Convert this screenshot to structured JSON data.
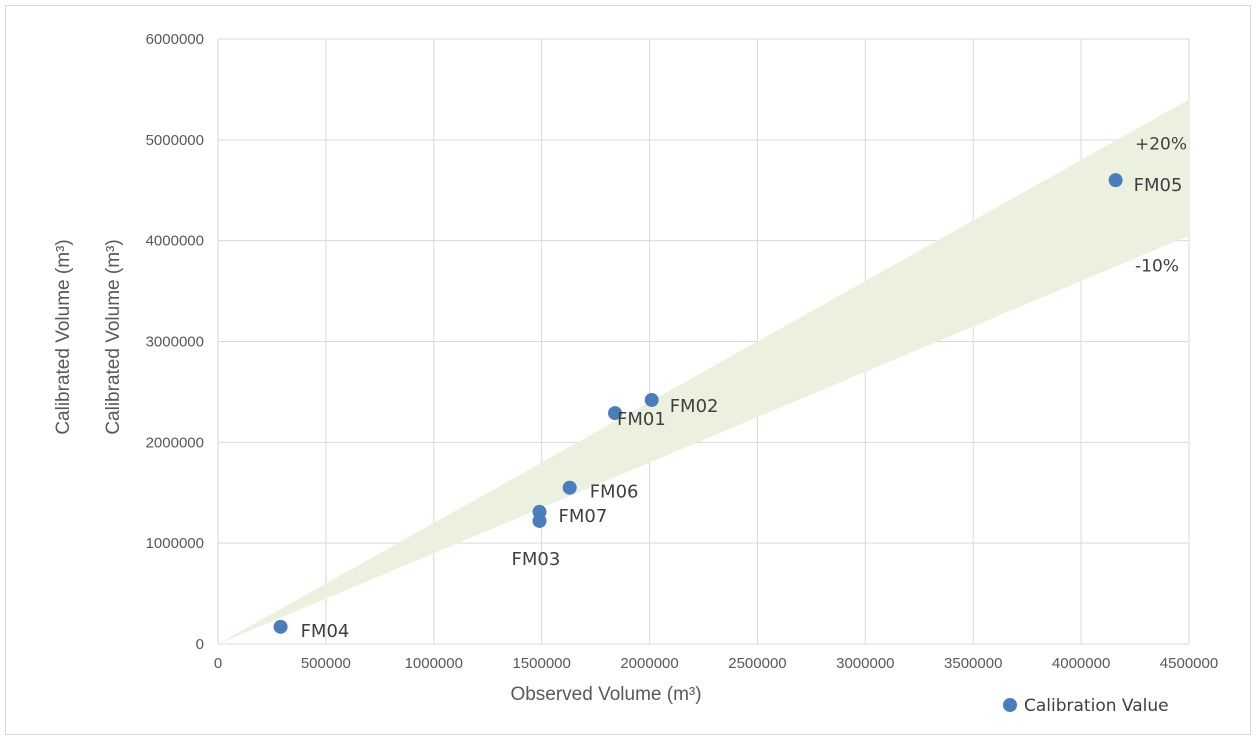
{
  "chart_data": {
    "type": "scatter",
    "xlabel": "Observed Volume (m³)",
    "ylabel": "Calibrated Volume (m³)",
    "ylabel_outer": "Calibrated Volume (m³)",
    "xlim": [
      0,
      4500000
    ],
    "ylim": [
      0,
      6000000
    ],
    "x_ticks": [
      "0",
      "500000",
      "1000000",
      "1500000",
      "2000000",
      "2500000",
      "3000000",
      "3500000",
      "4000000",
      "4500000"
    ],
    "y_ticks": [
      "0",
      "1000000",
      "2000000",
      "3000000",
      "4000000",
      "5000000",
      "6000000"
    ],
    "grid": true,
    "legend_position": "bottom-right",
    "series": [
      {
        "name": "Calibration Value",
        "color": "#4a7ebb",
        "points": [
          {
            "label": "FM01",
            "x": 1840000,
            "y": 2290000
          },
          {
            "label": "FM02",
            "x": 2010000,
            "y": 2420000
          },
          {
            "label": "FM03",
            "x": 1490000,
            "y": 1220000
          },
          {
            "label": "FM04",
            "x": 290000,
            "y": 170000
          },
          {
            "label": "FM05",
            "x": 4160000,
            "y": 4600000
          },
          {
            "label": "FM06",
            "x": 1630000,
            "y": 1550000
          },
          {
            "label": "FM07",
            "x": 1490000,
            "y": 1310000
          }
        ]
      }
    ],
    "band": {
      "color": "#ebf1de",
      "upper_factor": 1.2,
      "lower_factor": 0.9,
      "upper_label": "+20%",
      "lower_label": "-10%"
    }
  }
}
